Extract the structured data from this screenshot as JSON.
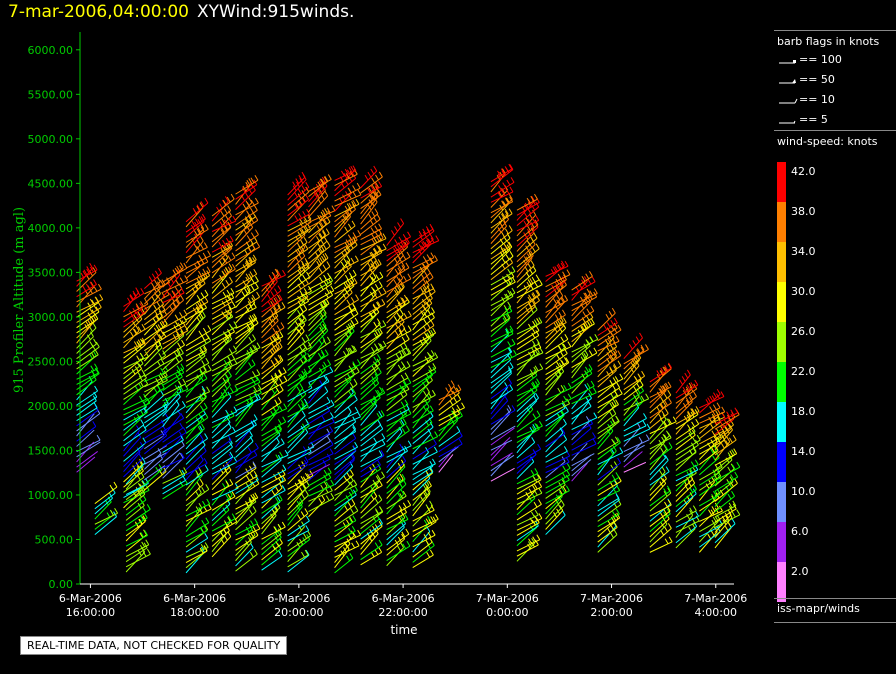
{
  "title": {
    "timestamp": "7-mar-2006,04:00:00",
    "name": "XYWind:915winds."
  },
  "qa_note": "REAL-TIME DATA, NOT CHECKED FOR QUALITY",
  "sidebar": {
    "flags_title": "barb flags in knots",
    "flags": [
      {
        "label": "== 100",
        "icon": "pennant-100-icon"
      },
      {
        "label": "== 50",
        "icon": "pennant-50-icon"
      },
      {
        "label": "== 10",
        "icon": "full-barb-icon"
      },
      {
        "label": "== 5",
        "icon": "half-barb-icon"
      }
    ],
    "speed_title": "wind-speed: knots",
    "colorbar": [
      {
        "label": "42.0",
        "color": "#ff0000"
      },
      {
        "label": "38.0",
        "color": "#ff7f00"
      },
      {
        "label": "34.0",
        "color": "#ffbf00"
      },
      {
        "label": "30.0",
        "color": "#ffff00"
      },
      {
        "label": "26.0",
        "color": "#9fff00"
      },
      {
        "label": "22.0",
        "color": "#00ff00"
      },
      {
        "label": "18.0",
        "color": "#00ffff"
      },
      {
        "label": "14.0",
        "color": "#0000ff"
      },
      {
        "label": "10.0",
        "color": "#6f8fff"
      },
      {
        "label": "6.0",
        "color": "#a020f0"
      },
      {
        "label": "2.0",
        "color": "#ff80ff"
      }
    ],
    "source": "iss-mapr/winds"
  },
  "chart_data": {
    "type": "scatter",
    "ylabel": "915 Profiler Altitude (m agl)",
    "xlabel": "time",
    "ylim": [
      0,
      6200
    ],
    "yticks": [
      "0.00",
      "500.00",
      "1000.00",
      "1500.00",
      "2000.00",
      "2500.00",
      "3000.00",
      "3500.00",
      "4000.00",
      "4500.00",
      "5000.00",
      "5500.00",
      "6000.00"
    ],
    "xticks": [
      {
        "date": "6-Mar-2006",
        "time": "16:00:00"
      },
      {
        "date": "6-Mar-2006",
        "time": "18:00:00"
      },
      {
        "date": "6-Mar-2006",
        "time": "20:00:00"
      },
      {
        "date": "6-Mar-2006",
        "time": "22:00:00"
      },
      {
        "date": "7-Mar-2006",
        "time": "0:00:00"
      },
      {
        "date": "7-Mar-2006",
        "time": "2:00:00"
      },
      {
        "date": "7-Mar-2006",
        "time": "4:00:00"
      }
    ],
    "xlim_hours": [
      -0.2,
      12.35
    ],
    "profiles": [
      {
        "t": -0.15,
        "low": 1300,
        "high": 3500
      },
      {
        "t": 0.2,
        "low": 600,
        "high": 1000
      },
      {
        "t": 0.75,
        "low": 900,
        "high": 3200
      },
      {
        "t": 0.8,
        "low": 180,
        "high": 1200
      },
      {
        "t": 1.15,
        "low": 1100,
        "high": 3400
      },
      {
        "t": 1.5,
        "low": 1000,
        "high": 3450
      },
      {
        "t": 1.95,
        "low": 170,
        "high": 4150
      },
      {
        "t": 2.45,
        "low": 350,
        "high": 4200
      },
      {
        "t": 2.9,
        "low": 190,
        "high": 4450
      },
      {
        "t": 3.4,
        "low": 200,
        "high": 3400
      },
      {
        "t": 3.9,
        "low": 180,
        "high": 4450
      },
      {
        "t": 4.3,
        "low": 800,
        "high": 4500
      },
      {
        "t": 4.8,
        "low": 170,
        "high": 4600
      },
      {
        "t": 5.3,
        "low": 260,
        "high": 4500
      },
      {
        "t": 5.8,
        "low": 250,
        "high": 3900
      },
      {
        "t": 6.3,
        "low": 230,
        "high": 3900
      },
      {
        "t": 6.8,
        "low": 1300,
        "high": 2150
      },
      {
        "t": 7.8,
        "low": 1200,
        "high": 4600
      },
      {
        "t": 8.3,
        "low": 300,
        "high": 4250
      },
      {
        "t": 8.85,
        "low": 600,
        "high": 3550
      },
      {
        "t": 9.35,
        "low": 1200,
        "high": 3400
      },
      {
        "t": 9.85,
        "low": 400,
        "high": 2900
      },
      {
        "t": 10.35,
        "low": 1300,
        "high": 2600
      },
      {
        "t": 10.85,
        "low": 400,
        "high": 2350
      },
      {
        "t": 11.35,
        "low": 450,
        "high": 2200
      },
      {
        "t": 11.8,
        "low": 400,
        "high": 2050
      },
      {
        "t": 12.1,
        "low": 450,
        "high": 1850
      }
    ]
  }
}
